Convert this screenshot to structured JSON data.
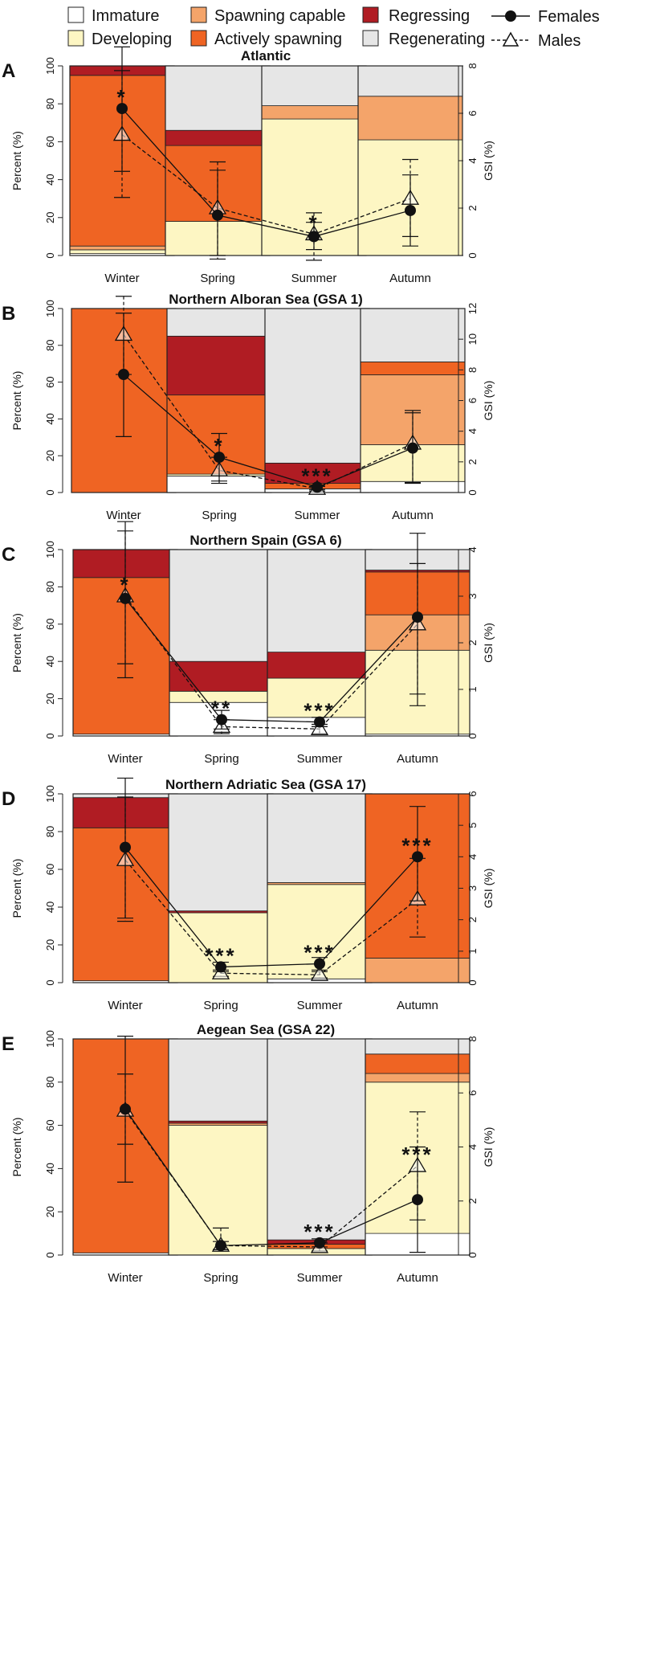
{
  "legend": {
    "items": [
      {
        "key": "immature",
        "label": "Immature",
        "color": "#ffffff"
      },
      {
        "key": "developing",
        "label": "Developing",
        "color": "#fdf6c3"
      },
      {
        "key": "spawning_capable",
        "label": "Spawning capable",
        "color": "#f4a46a"
      },
      {
        "key": "actively_spawning",
        "label": "Actively spawning",
        "color": "#ef6423"
      },
      {
        "key": "regressing",
        "label": "Regressing",
        "color": "#b01c23"
      },
      {
        "key": "regenerating",
        "label": "Regenerating",
        "color": "#e6e6e6"
      }
    ],
    "females_label": "Females",
    "males_label": "Males"
  },
  "chart_data": [
    {
      "type": "bar",
      "panel_letter": "A",
      "title": "Atlantic",
      "categories": [
        "Winter",
        "Spring",
        "Summer",
        "Autumn"
      ],
      "ylabel": "Percent (%)",
      "ylim": [
        0,
        100
      ],
      "yticks": [
        0,
        20,
        40,
        60,
        80,
        100
      ],
      "y2label": "GSI (%)",
      "y2lim": [
        0,
        8
      ],
      "y2ticks": [
        0,
        2,
        4,
        6,
        8
      ],
      "stages": {
        "immature": [
          1,
          0,
          0,
          0
        ],
        "developing": [
          2,
          18,
          72,
          61
        ],
        "spawning_capable": [
          2,
          0,
          7,
          23
        ],
        "actively_spawning": [
          90,
          40,
          0,
          0
        ],
        "regressing": [
          5,
          8,
          0,
          0
        ],
        "regenerating": [
          0,
          34,
          21,
          16
        ]
      },
      "gsi_females": {
        "mean": [
          6.2,
          1.7,
          0.8,
          1.9
        ],
        "lower": [
          3.55,
          0,
          0.25,
          0.4
        ],
        "upper": [
          8.8,
          3.6,
          1.4,
          3.4
        ]
      },
      "gsi_males": {
        "mean": [
          5.1,
          2.0,
          0.9,
          2.4
        ],
        "lower": [
          2.45,
          -0.15,
          -0.2,
          0.8
        ],
        "upper": [
          7.8,
          3.95,
          1.8,
          4.05
        ]
      },
      "significance": [
        "*",
        "",
        "*",
        ""
      ]
    },
    {
      "type": "bar",
      "panel_letter": "B",
      "title": "Northern Alboran Sea (GSA 1)",
      "categories": [
        "Winter",
        "Spring",
        "Summer",
        "Autumn"
      ],
      "ylabel": "Percent (%)",
      "ylim": [
        0,
        100
      ],
      "yticks": [
        0,
        20,
        40,
        60,
        80,
        100
      ],
      "y2label": "GSI (%)",
      "y2lim": [
        0,
        12
      ],
      "y2ticks": [
        0,
        2,
        4,
        6,
        8,
        10,
        12
      ],
      "stages": {
        "immature": [
          0,
          9,
          2,
          6
        ],
        "developing": [
          0,
          1,
          0,
          20
        ],
        "spawning_capable": [
          0,
          0,
          0,
          38
        ],
        "actively_spawning": [
          100,
          43,
          3,
          7
        ],
        "regressing": [
          0,
          32,
          11,
          0
        ],
        "regenerating": [
          0,
          15,
          84,
          29
        ]
      },
      "gsi_females": {
        "mean": [
          7.7,
          2.3,
          0.35,
          2.9
        ],
        "lower": [
          3.65,
          0.75,
          0.2,
          0.6
        ],
        "upper": [
          11.7,
          3.85,
          0.5,
          5.2
        ]
      },
      "gsi_males": {
        "mean": [
          10.3,
          1.45,
          0.25,
          3.2
        ],
        "lower": [
          7.7,
          0.6,
          0.1,
          0.65
        ],
        "upper": [
          12.8,
          2.3,
          0.4,
          5.35
        ]
      },
      "significance": [
        "",
        "*",
        "***",
        ""
      ]
    },
    {
      "type": "bar",
      "panel_letter": "C",
      "title": "Northern Spain (GSA 6)",
      "categories": [
        "Winter",
        "Spring",
        "Summer",
        "Autumn"
      ],
      "ylabel": "Percent (%)",
      "ylim": [
        0,
        100
      ],
      "yticks": [
        0,
        20,
        40,
        60,
        80,
        100
      ],
      "y2label": "GSI (%)",
      "y2lim": [
        0,
        4
      ],
      "y2ticks": [
        0,
        1,
        2,
        3,
        4
      ],
      "stages": {
        "immature": [
          1,
          18,
          10,
          1
        ],
        "developing": [
          0,
          6,
          21,
          45
        ],
        "spawning_capable": [
          0,
          0,
          0,
          19
        ],
        "actively_spawning": [
          84,
          0,
          0,
          23
        ],
        "regressing": [
          15,
          16,
          14,
          1
        ],
        "regenerating": [
          0,
          60,
          55,
          11
        ]
      },
      "gsi_females": {
        "mean": [
          2.95,
          0.35,
          0.3,
          2.55
        ],
        "lower": [
          1.25,
          0.15,
          0.2,
          0.65
        ],
        "upper": [
          4.6,
          0.55,
          0.4,
          4.35
        ]
      },
      "gsi_males": {
        "mean": [
          3.0,
          0.2,
          0.15,
          2.4
        ],
        "lower": [
          1.55,
          0.05,
          0.05,
          0.9
        ],
        "upper": [
          4.4,
          0.35,
          0.25,
          3.7
        ]
      },
      "significance": [
        "*",
        "**",
        "***",
        ""
      ]
    },
    {
      "type": "bar",
      "panel_letter": "D",
      "title": "Northern Adriatic Sea (GSA 17)",
      "categories": [
        "Winter",
        "Spring",
        "Summer",
        "Autumn"
      ],
      "ylabel": "Percent (%)",
      "ylim": [
        0,
        100
      ],
      "yticks": [
        0,
        20,
        40,
        60,
        80,
        100
      ],
      "y2label": "GSI (%)",
      "y2lim": [
        0,
        6
      ],
      "y2ticks": [
        0,
        1,
        2,
        3,
        4,
        5,
        6
      ],
      "stages": {
        "immature": [
          1,
          0,
          2,
          0
        ],
        "developing": [
          0,
          37,
          50,
          0
        ],
        "spawning_capable": [
          0,
          0,
          1,
          13
        ],
        "actively_spawning": [
          81,
          0,
          0,
          87
        ],
        "regressing": [
          16,
          1,
          0,
          0
        ],
        "regenerating": [
          2,
          62,
          47,
          0
        ]
      },
      "gsi_females": {
        "mean": [
          4.3,
          0.5,
          0.6,
          4.0
        ],
        "lower": [
          2.05,
          0.35,
          0.4,
          2.6
        ],
        "upper": [
          6.5,
          0.65,
          0.8,
          5.6
        ]
      },
      "gsi_males": {
        "mean": [
          3.9,
          0.3,
          0.25,
          2.65
        ],
        "lower": [
          1.95,
          0.2,
          0.15,
          1.45
        ],
        "upper": [
          5.9,
          0.4,
          0.35,
          3.95
        ]
      },
      "significance": [
        "",
        "***",
        "***",
        "***"
      ]
    },
    {
      "type": "bar",
      "panel_letter": "E",
      "title": "Aegean Sea (GSA 22)",
      "categories": [
        "Winter",
        "Spring",
        "Summer",
        "Autumn"
      ],
      "ylabel": "Percent (%)",
      "ylim": [
        0,
        100
      ],
      "yticks": [
        0,
        20,
        40,
        60,
        80,
        100
      ],
      "y2label": "GSI (%)",
      "y2lim": [
        0,
        8
      ],
      "y2ticks": [
        0,
        2,
        4,
        6,
        8
      ],
      "stages": {
        "immature": [
          1,
          0,
          0,
          10
        ],
        "developing": [
          0,
          60,
          3,
          70
        ],
        "spawning_capable": [
          0,
          1,
          0,
          4
        ],
        "actively_spawning": [
          99,
          0,
          2,
          9
        ],
        "regressing": [
          0,
          1,
          2,
          0
        ],
        "regenerating": [
          0,
          38,
          93,
          7
        ]
      },
      "gsi_females": {
        "mean": [
          5.4,
          0.35,
          0.45,
          2.05
        ],
        "lower": [
          2.7,
          0.2,
          0.3,
          0.1
        ],
        "upper": [
          8.1,
          0.5,
          0.6,
          4.0
        ]
      },
      "gsi_males": {
        "mean": [
          5.35,
          0.35,
          0.3,
          3.3
        ],
        "lower": [
          4.1,
          0.2,
          0.15,
          1.3
        ],
        "upper": [
          6.7,
          1.0,
          0.45,
          5.3
        ]
      },
      "significance": [
        "",
        "",
        "***",
        "***"
      ]
    }
  ]
}
